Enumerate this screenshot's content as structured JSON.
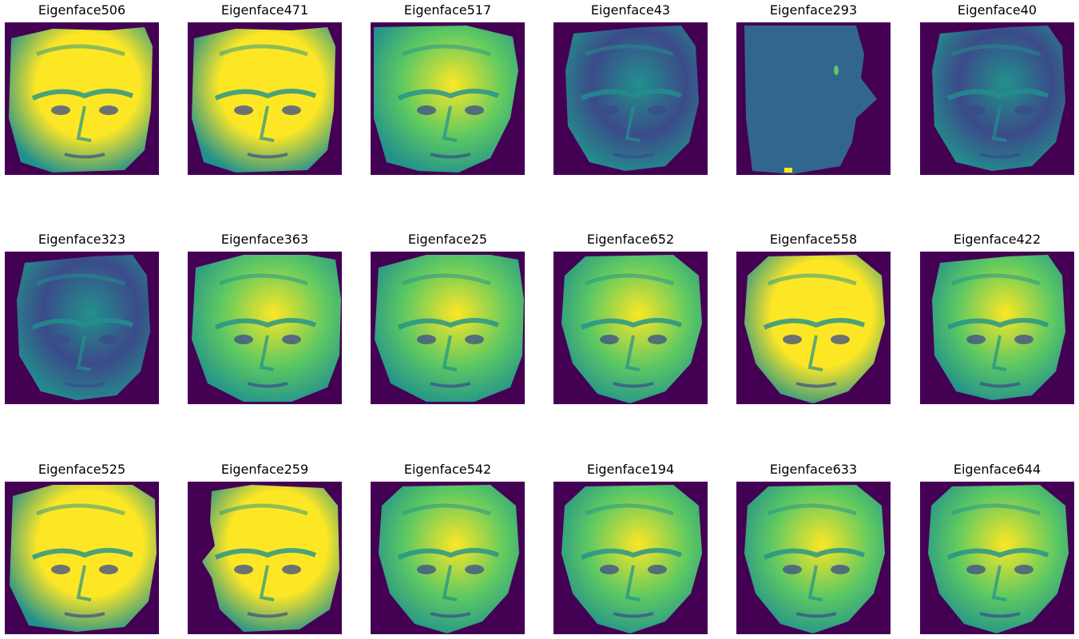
{
  "figure": {
    "background": "#ffffff",
    "colormap": {
      "name": "viridis",
      "dark": "#440154",
      "low": "#3b4b8a",
      "mid": "#21918c",
      "high": "#5ec962",
      "max": "#fde725"
    },
    "panels": [
      {
        "title": "Eigenface506",
        "view": "three-quarter-left",
        "tone": "bright"
      },
      {
        "title": "Eigenface471",
        "view": "three-quarter-left",
        "tone": "bright"
      },
      {
        "title": "Eigenface517",
        "view": "tilted-up",
        "tone": "medium"
      },
      {
        "title": "Eigenface43",
        "view": "right-lit",
        "tone": "dark"
      },
      {
        "title": "Eigenface293",
        "view": "silhouette",
        "tone": "flat"
      },
      {
        "title": "Eigenface40",
        "view": "right-lit",
        "tone": "dark"
      },
      {
        "title": "Eigenface323",
        "view": "right-lit",
        "tone": "dark"
      },
      {
        "title": "Eigenface363",
        "view": "three-quarter-right",
        "tone": "medium"
      },
      {
        "title": "Eigenface25",
        "view": "three-quarter-right",
        "tone": "medium"
      },
      {
        "title": "Eigenface652",
        "view": "frontal",
        "tone": "medium"
      },
      {
        "title": "Eigenface558",
        "view": "frontal",
        "tone": "bright"
      },
      {
        "title": "Eigenface422",
        "view": "right-lit",
        "tone": "medium"
      },
      {
        "title": "Eigenface525",
        "view": "left-lit",
        "tone": "bright"
      },
      {
        "title": "Eigenface259",
        "view": "profile-left",
        "tone": "bright"
      },
      {
        "title": "Eigenface542",
        "view": "frontal",
        "tone": "medium"
      },
      {
        "title": "Eigenface194",
        "view": "frontal",
        "tone": "medium"
      },
      {
        "title": "Eigenface633",
        "view": "frontal",
        "tone": "medium"
      },
      {
        "title": "Eigenface644",
        "view": "frontal",
        "tone": "medium"
      }
    ]
  }
}
